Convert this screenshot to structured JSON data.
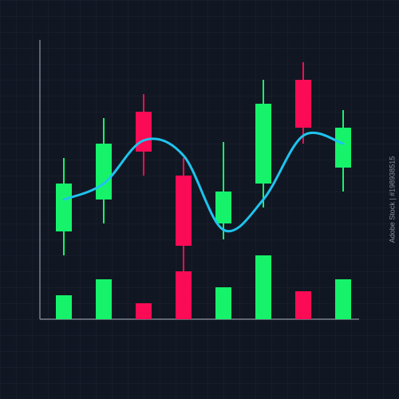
{
  "chart_data": {
    "type": "candlestick",
    "categories": [
      null,
      null,
      null,
      null,
      null,
      null,
      null,
      null
    ],
    "up_color": "#16f36b",
    "down_color": "#fb0b55",
    "line_color": "#1fc3ee",
    "ylim": [
      0,
      350
    ],
    "open": [
      110,
      150,
      260,
      180,
      120,
      170,
      300,
      190
    ],
    "high": [
      202,
      252,
      282,
      202,
      222,
      300,
      322,
      262
    ],
    "low": [
      80,
      120,
      180,
      60,
      100,
      140,
      220,
      160
    ],
    "close": [
      170,
      220,
      210,
      92,
      160,
      270,
      240,
      240
    ],
    "volume": [
      30,
      50,
      20,
      60,
      40,
      80,
      35,
      50
    ],
    "line": [
      150,
      170,
      224,
      205,
      112,
      150,
      230,
      220
    ]
  },
  "watermark": "Adobe Stock | #198938515"
}
